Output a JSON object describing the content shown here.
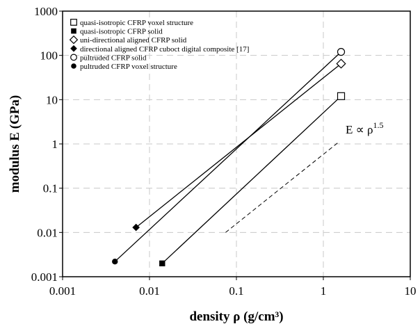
{
  "chart_data": {
    "type": "line",
    "xlabel": "density ρ (g/cm³)",
    "ylabel": "modulus E (GPa)",
    "x_scale": "log",
    "y_scale": "log",
    "xlim": [
      0.001,
      10
    ],
    "ylim": [
      0.001,
      1000
    ],
    "x_ticks": [
      "0.001",
      "0.01",
      "0.1",
      "1",
      "10"
    ],
    "y_ticks": [
      "0.001",
      "0.01",
      "0.1",
      "1",
      "10",
      "100",
      "1000"
    ],
    "grid": true,
    "legend_position": "top-left",
    "series": [
      {
        "name": "quasi-isotropic CFRP voxel structure",
        "marker": "open-square",
        "x": [
          1.6
        ],
        "y": [
          12
        ]
      },
      {
        "name": "quasi-isotropic CFRP solid",
        "marker": "filled-square",
        "x": [
          0.014
        ],
        "y": [
          0.002
        ]
      },
      {
        "name": "uni-directional aligned CFRP solid",
        "marker": "open-diamond",
        "x": [
          1.6
        ],
        "y": [
          65
        ]
      },
      {
        "name": "directional aligned CFRP cuboct digital composite [17]",
        "marker": "filled-diamond",
        "x": [
          0.007
        ],
        "y": [
          0.013
        ]
      },
      {
        "name": "pultruded CFRP solid",
        "marker": "open-circle",
        "x": [
          1.6
        ],
        "y": [
          120
        ]
      },
      {
        "name": "pultruded CFRP voxel structure",
        "marker": "filled-circle",
        "x": [
          0.004
        ],
        "y": [
          0.0022
        ]
      }
    ],
    "lines": [
      {
        "from": [
          0.014,
          0.002
        ],
        "to": [
          1.6,
          12
        ]
      },
      {
        "from": [
          0.007,
          0.013
        ],
        "to": [
          1.6,
          65
        ]
      },
      {
        "from": [
          0.004,
          0.0022
        ],
        "to": [
          1.6,
          120
        ]
      }
    ],
    "reference_line": {
      "style": "dashed",
      "from": [
        0.075,
        0.01
      ],
      "to": [
        1.5,
        1.1
      ],
      "label": "E ∝ ρ",
      "label_exponent": "1.5"
    }
  }
}
